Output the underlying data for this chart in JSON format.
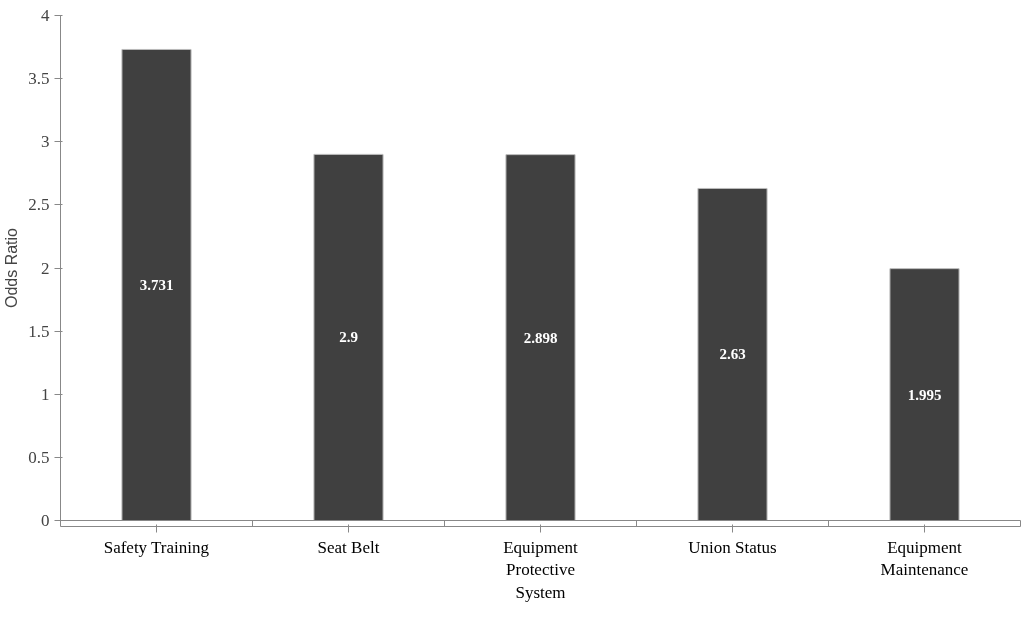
{
  "chart_data": {
    "type": "bar",
    "ylabel": "Odds Ratio",
    "categories": [
      "Safety Training",
      "Seat Belt",
      "Equipment Protective System",
      "Union Status",
      "Equipment Maintenance"
    ],
    "values": [
      3.731,
      2.9,
      2.898,
      2.63,
      1.995
    ],
    "color": "#404040",
    "ylim": [
      0,
      4
    ],
    "yticks": [
      0,
      0.5,
      1,
      1.5,
      2,
      2.5,
      3,
      3.5,
      4
    ],
    "grid": false,
    "data_labels": true
  }
}
